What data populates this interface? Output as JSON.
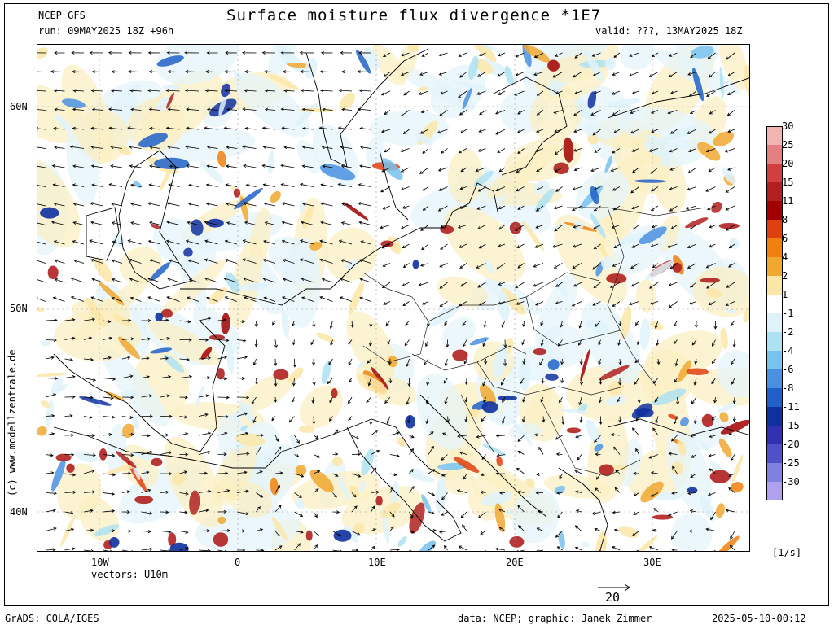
{
  "header": {
    "model": "NCEP GFS",
    "title": "Surface moisture flux divergence *1E7",
    "run": "run: 09MAY2025 18Z +96h",
    "valid": "valid: ???, 13MAY2025 18Z"
  },
  "map": {
    "lat_labels": [
      "60N",
      "50N",
      "40N"
    ],
    "lon_labels": [
      "10W",
      "0",
      "10E",
      "20E",
      "30E"
    ],
    "vectors_label": "vectors: U10m",
    "vector_ref": "20",
    "watermark": "(c) www.modellzentrale.de"
  },
  "colorbar": {
    "labels": [
      "30",
      "25",
      "20",
      "15",
      "11",
      "8",
      "6",
      "4",
      "2",
      "1",
      "-1",
      "-2",
      "-4",
      "-6",
      "-8",
      "-11",
      "-15",
      "-20",
      "-25",
      "-30"
    ],
    "colors": [
      "#f2b3b3",
      "#e58080",
      "#d04040",
      "#b02020",
      "#a00000",
      "#e04010",
      "#f08010",
      "#f0a830",
      "#fbe6a8",
      "#ffffff",
      "#dff2fa",
      "#aee2f2",
      "#78c2ee",
      "#4a90e0",
      "#2060c8",
      "#1030a0",
      "#3030b0",
      "#5050c8",
      "#8080e0",
      "#b0a0f0"
    ],
    "units": "[1/s]"
  },
  "footer": {
    "left": "GrADS: COLA/IGES",
    "center": "data: NCEP; graphic: Janek Zimmer",
    "right": "2025-05-10-00:12"
  }
}
